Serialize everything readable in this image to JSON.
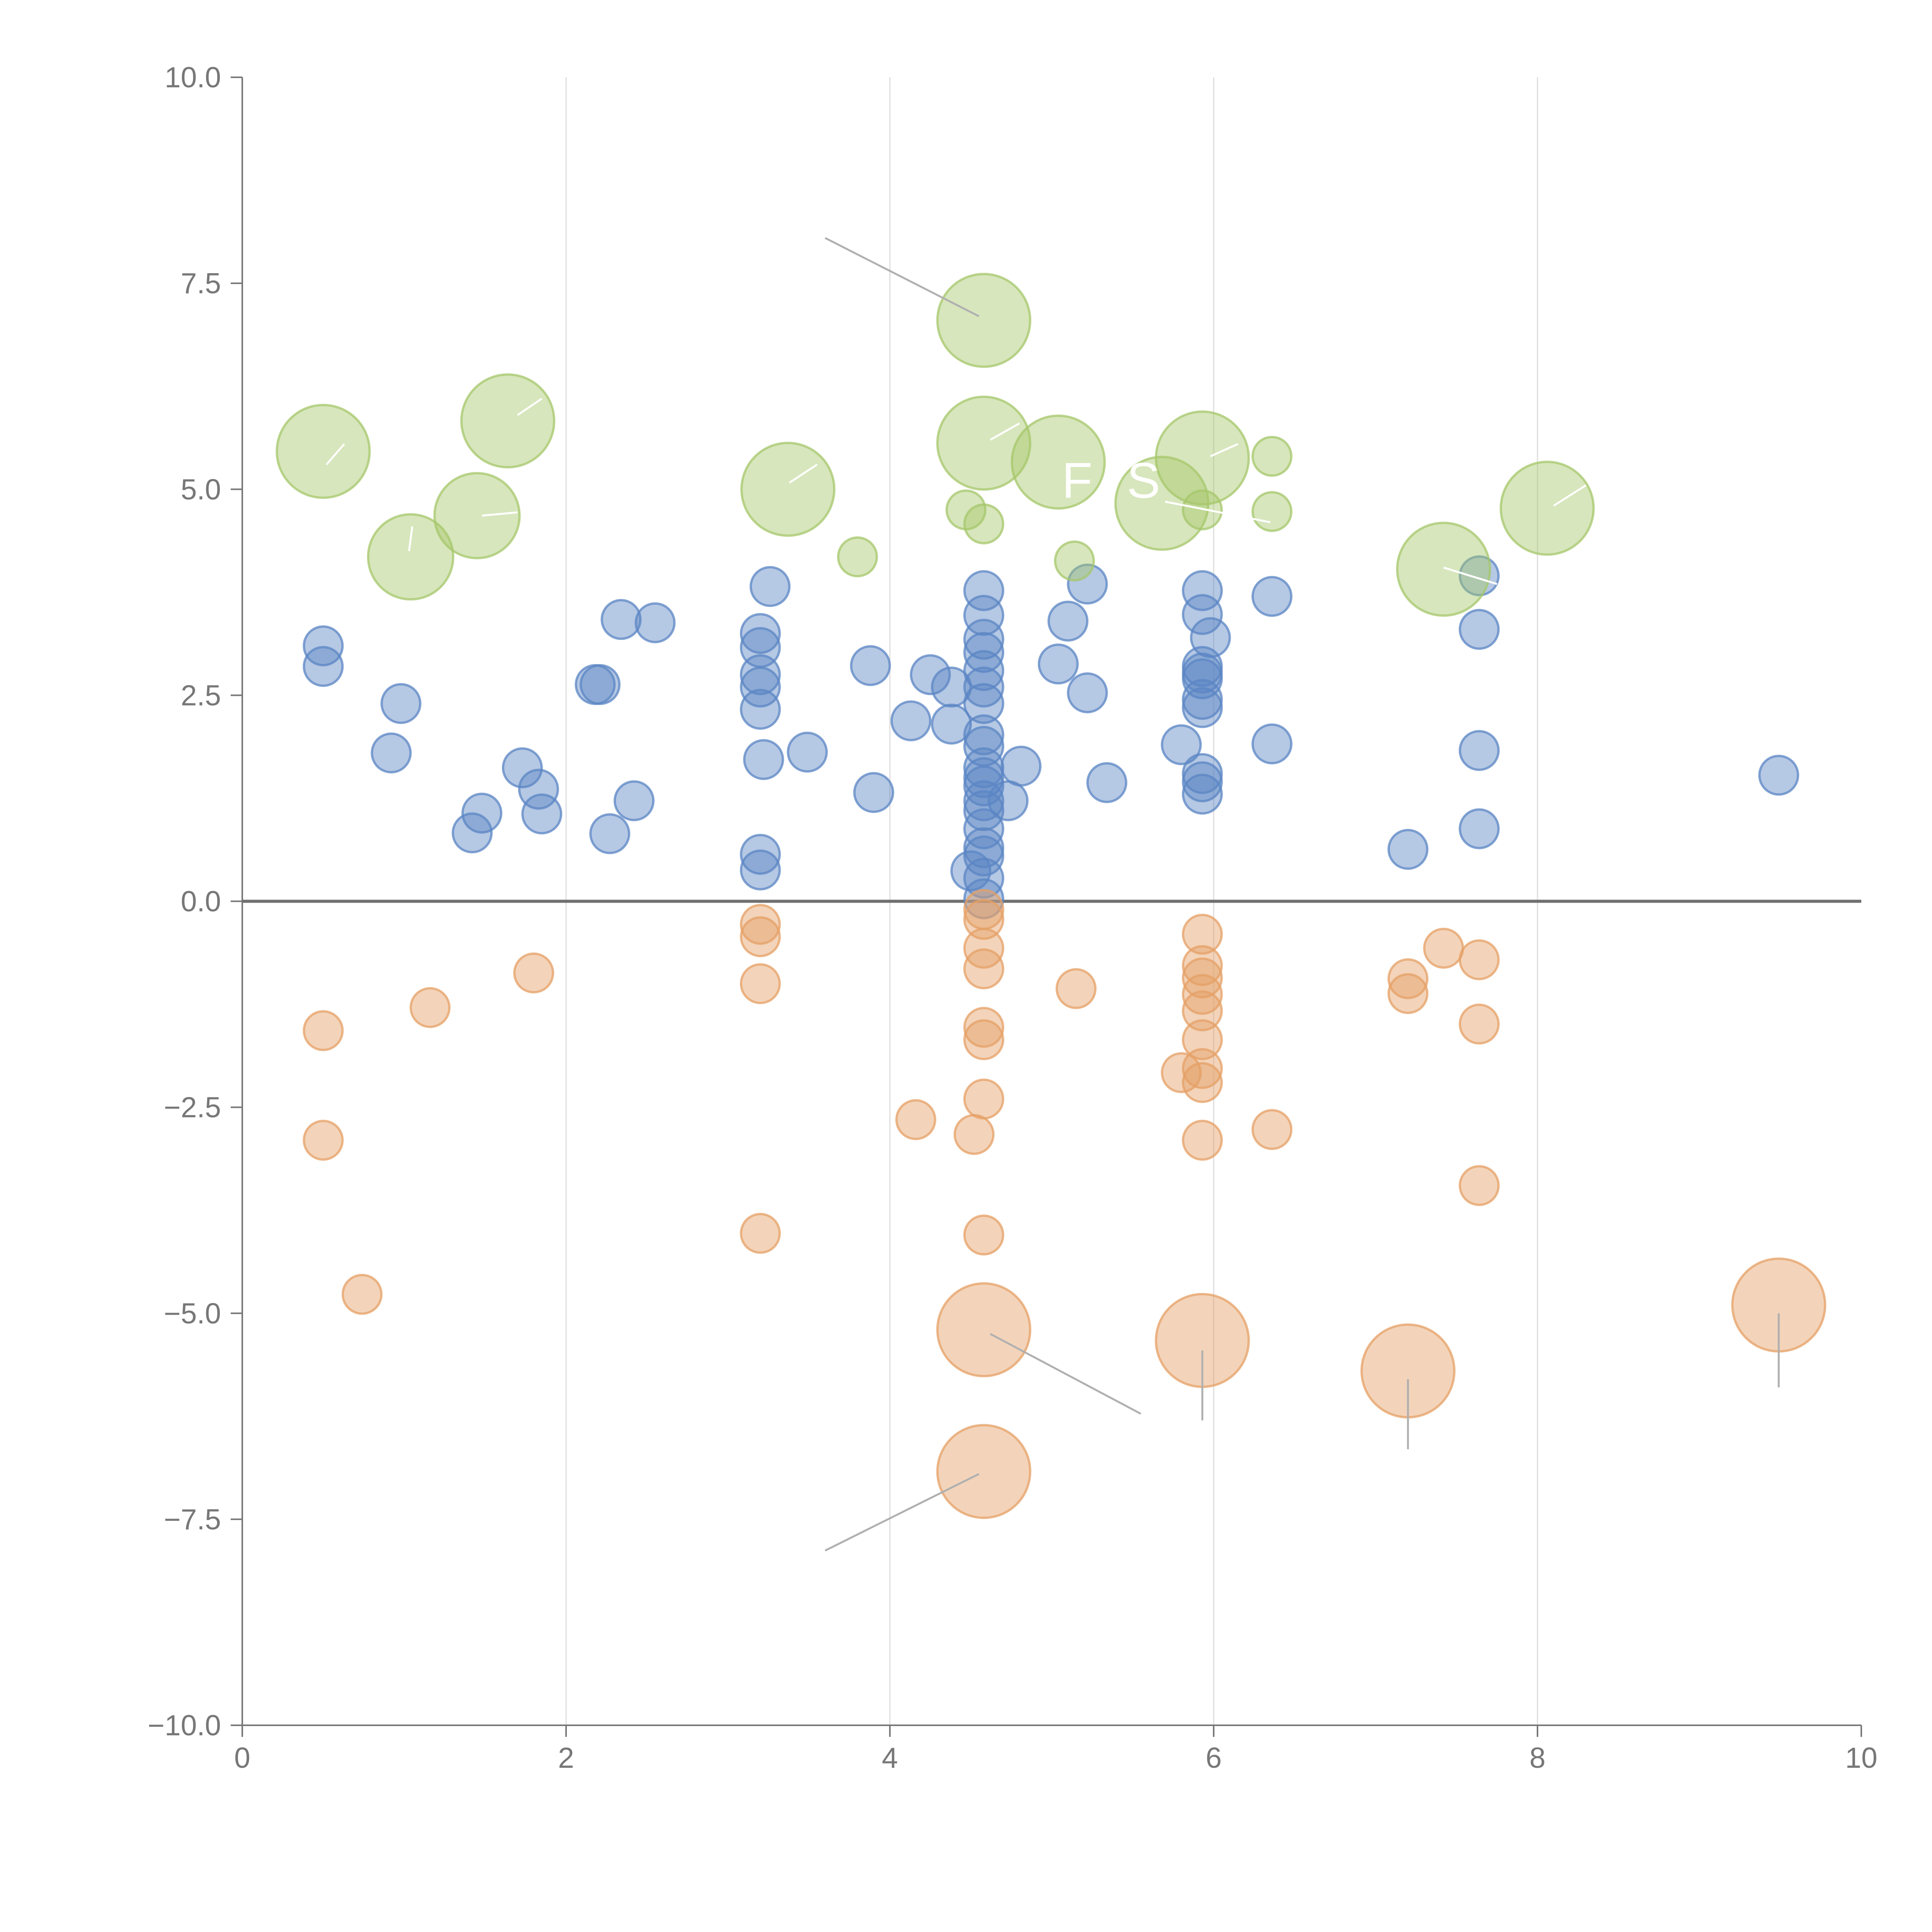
{
  "chart_data": {
    "type": "scatter",
    "title": "",
    "xlabel": "",
    "ylabel": "",
    "xlim": [
      0,
      10
    ],
    "ylim": [
      -10,
      10
    ],
    "x_ticks": [
      "0",
      "2",
      "4",
      "6",
      "8",
      "10"
    ],
    "y_ticks": [
      "−10.0",
      "−7.5",
      "−5.0",
      "−2.5",
      "0.0",
      "2.5",
      "5.0",
      "7.5",
      "10.0"
    ],
    "x_tick_values": [
      0,
      2,
      4,
      6,
      8,
      10
    ],
    "y_tick_values": [
      -10,
      -7.5,
      -5,
      -2.5,
      0,
      2.5,
      5,
      7.5,
      10
    ],
    "grid": "vertical",
    "zero_line": 0,
    "colors": {
      "blue": "#5b85c4",
      "orange": "#e5a066",
      "green": "#a6c76b",
      "axis": "#777777",
      "zero_line": "#707070",
      "grid": "#dddddd",
      "leader_line": "#b0b0b0"
    },
    "overlay_labels": [
      "F",
      "S"
    ],
    "series": [
      {
        "name": "blue",
        "color": "#5b85c4",
        "size": 1,
        "points": [
          [
            0.5,
            3.1
          ],
          [
            0.5,
            2.85
          ],
          [
            0.98,
            2.4
          ],
          [
            0.92,
            1.8
          ],
          [
            1.48,
            1.07
          ],
          [
            1.42,
            0.83
          ],
          [
            1.73,
            1.62
          ],
          [
            1.83,
            1.36
          ],
          [
            1.85,
            1.06
          ],
          [
            2.18,
            2.63
          ],
          [
            2.21,
            2.63
          ],
          [
            2.34,
            3.42
          ],
          [
            2.55,
            3.38
          ],
          [
            2.42,
            1.22
          ],
          [
            2.27,
            0.82
          ],
          [
            3.2,
            3.25
          ],
          [
            3.2,
            3.08
          ],
          [
            3.2,
            2.75
          ],
          [
            3.2,
            2.6
          ],
          [
            3.2,
            2.33
          ],
          [
            3.26,
            3.82
          ],
          [
            3.22,
            1.72
          ],
          [
            3.49,
            1.81
          ],
          [
            3.2,
            0.57
          ],
          [
            3.2,
            0.38
          ],
          [
            3.88,
            2.86
          ],
          [
            3.9,
            1.32
          ],
          [
            4.13,
            2.19
          ],
          [
            4.25,
            2.75
          ],
          [
            4.38,
            2.6
          ],
          [
            4.38,
            2.15
          ],
          [
            4.58,
            3.77
          ],
          [
            4.58,
            3.47
          ],
          [
            4.58,
            3.18
          ],
          [
            4.58,
            3.02
          ],
          [
            4.58,
            2.8
          ],
          [
            4.58,
            2.6
          ],
          [
            4.58,
            2.4
          ],
          [
            4.58,
            2.02
          ],
          [
            4.58,
            1.88
          ],
          [
            4.58,
            1.62
          ],
          [
            4.58,
            1.5
          ],
          [
            4.58,
            1.4
          ],
          [
            4.58,
            1.22
          ],
          [
            4.58,
            1.1
          ],
          [
            4.58,
            0.88
          ],
          [
            4.58,
            0.65
          ],
          [
            4.58,
            0.55
          ],
          [
            4.58,
            0.28
          ],
          [
            4.58,
            0.03
          ],
          [
            4.5,
            0.37
          ],
          [
            4.73,
            1.22
          ],
          [
            4.81,
            1.64
          ],
          [
            5.04,
            2.88
          ],
          [
            5.1,
            3.4
          ],
          [
            5.22,
            3.85
          ],
          [
            5.22,
            2.53
          ],
          [
            5.34,
            1.44
          ],
          [
            5.8,
            1.9
          ],
          [
            5.93,
            3.77
          ],
          [
            5.93,
            3.48
          ],
          [
            5.98,
            3.2
          ],
          [
            5.93,
            2.85
          ],
          [
            5.93,
            2.77
          ],
          [
            5.93,
            2.7
          ],
          [
            5.93,
            2.45
          ],
          [
            5.93,
            2.35
          ],
          [
            5.93,
            1.55
          ],
          [
            5.93,
            1.45
          ],
          [
            5.93,
            1.3
          ],
          [
            6.36,
            3.7
          ],
          [
            6.36,
            1.91
          ],
          [
            7.2,
            0.63
          ],
          [
            7.64,
            3.95
          ],
          [
            7.64,
            3.3
          ],
          [
            7.64,
            1.83
          ],
          [
            7.64,
            0.88
          ],
          [
            9.49,
            1.53
          ]
        ]
      },
      {
        "name": "orange",
        "color": "#e5a066",
        "points": [
          [
            0.5,
            -1.57,
            1
          ],
          [
            0.5,
            -2.9,
            1
          ],
          [
            0.74,
            -4.77,
            1
          ],
          [
            1.16,
            -1.29,
            1
          ],
          [
            1.8,
            -0.87,
            1
          ],
          [
            3.2,
            -0.28,
            1
          ],
          [
            3.2,
            -0.43,
            1
          ],
          [
            3.2,
            -1.0,
            1
          ],
          [
            3.2,
            -4.03,
            1
          ],
          [
            4.16,
            -2.65,
            1
          ],
          [
            4.52,
            -2.83,
            1
          ],
          [
            4.58,
            -0.1,
            1
          ],
          [
            4.58,
            -0.22,
            1
          ],
          [
            4.58,
            -0.57,
            1
          ],
          [
            4.58,
            -0.82,
            1
          ],
          [
            4.58,
            -1.53,
            1
          ],
          [
            4.58,
            -1.68,
            1
          ],
          [
            4.58,
            -2.4,
            1
          ],
          [
            4.58,
            -4.05,
            1
          ],
          [
            4.58,
            -5.2,
            2.4
          ],
          [
            4.58,
            -6.92,
            2.4
          ],
          [
            5.15,
            -1.06,
            1
          ],
          [
            5.8,
            -2.08,
            1
          ],
          [
            5.93,
            -0.4,
            1
          ],
          [
            5.93,
            -0.78,
            1
          ],
          [
            5.93,
            -0.93,
            1
          ],
          [
            5.93,
            -1.13,
            1
          ],
          [
            5.93,
            -1.33,
            1
          ],
          [
            5.93,
            -1.68,
            1
          ],
          [
            5.93,
            -2.03,
            1
          ],
          [
            5.93,
            -2.2,
            1
          ],
          [
            5.93,
            -2.9,
            1
          ],
          [
            5.93,
            -5.33,
            2.4
          ],
          [
            6.36,
            -2.77,
            1
          ],
          [
            7.2,
            -0.94,
            1
          ],
          [
            7.2,
            -1.12,
            1
          ],
          [
            7.2,
            -5.7,
            2.4
          ],
          [
            7.42,
            -0.57,
            1
          ],
          [
            7.64,
            -0.71,
            1
          ],
          [
            7.64,
            -1.49,
            1
          ],
          [
            7.64,
            -3.45,
            1
          ],
          [
            9.49,
            -4.9,
            2.4
          ]
        ]
      },
      {
        "name": "green",
        "color": "#a6c76b",
        "points": [
          [
            0.5,
            5.46,
            2.4
          ],
          [
            1.04,
            4.18,
            2.2
          ],
          [
            1.45,
            4.68,
            2.2
          ],
          [
            1.64,
            5.83,
            2.4
          ],
          [
            3.37,
            5.0,
            2.4
          ],
          [
            3.8,
            4.18,
            1
          ],
          [
            4.47,
            4.75,
            1
          ],
          [
            4.58,
            4.58,
            1
          ],
          [
            4.58,
            7.05,
            2.4
          ],
          [
            4.58,
            5.56,
            2.4
          ],
          [
            5.04,
            5.33,
            2.4
          ],
          [
            5.14,
            4.13,
            1
          ],
          [
            5.68,
            4.83,
            2.4
          ],
          [
            5.93,
            5.38,
            2.4
          ],
          [
            5.93,
            4.75,
            1
          ],
          [
            6.36,
            5.4,
            1
          ],
          [
            6.36,
            4.73,
            1
          ],
          [
            7.42,
            4.03,
            2.4
          ],
          [
            8.06,
            4.77,
            2.4
          ]
        ]
      }
    ]
  }
}
